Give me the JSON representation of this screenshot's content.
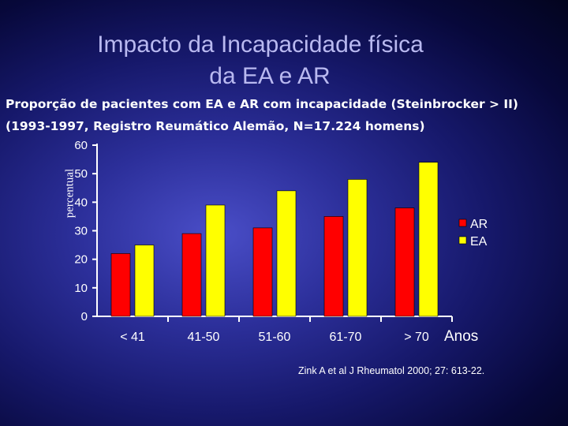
{
  "slide": {
    "title_line1": "Impacto da Incapacidade física",
    "title_line2": "da EA e AR",
    "subtitle_line1": "Proporção de pacientes com EA e AR com incapacidade (Steinbrocker > II)",
    "subtitle_line2": "(1993-1997, Registro Reumático Alemão, N=17.224 homens)",
    "citation": "Zink A et al J Rheumatol 2000; 27: 613-22."
  },
  "colors": {
    "ar": "#ff0000",
    "ea": "#ffff00",
    "axis": "#ffffff",
    "title": "#b9b9f0"
  },
  "chart_data": {
    "type": "bar",
    "ylabel": "percentual",
    "xlabel": "Anos",
    "categories": [
      "< 41",
      "41-50",
      "51-60",
      "61-70",
      "> 70"
    ],
    "series": [
      {
        "name": "AR",
        "values": [
          22,
          29,
          31,
          35,
          38
        ]
      },
      {
        "name": "EA",
        "values": [
          25,
          39,
          44,
          48,
          54
        ]
      }
    ],
    "ylim": [
      0,
      60
    ],
    "yticks": [
      0,
      10,
      20,
      30,
      40,
      50,
      60
    ],
    "grid": false,
    "legend": "right"
  }
}
